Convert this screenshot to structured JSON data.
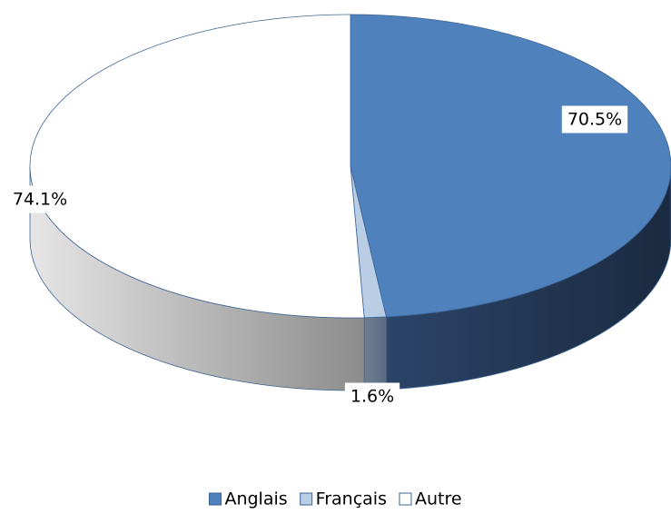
{
  "chart_data": {
    "type": "pie3d",
    "categories": [
      "Anglais",
      "Français",
      "Autre"
    ],
    "values": [
      70.5,
      1.6,
      74.1
    ],
    "value_labels": [
      "70.5%",
      "1.6%",
      "74.1%"
    ],
    "colors": [
      "#4f81bd",
      "#b9cde5",
      "#ffffff"
    ],
    "legend": "bottom"
  }
}
